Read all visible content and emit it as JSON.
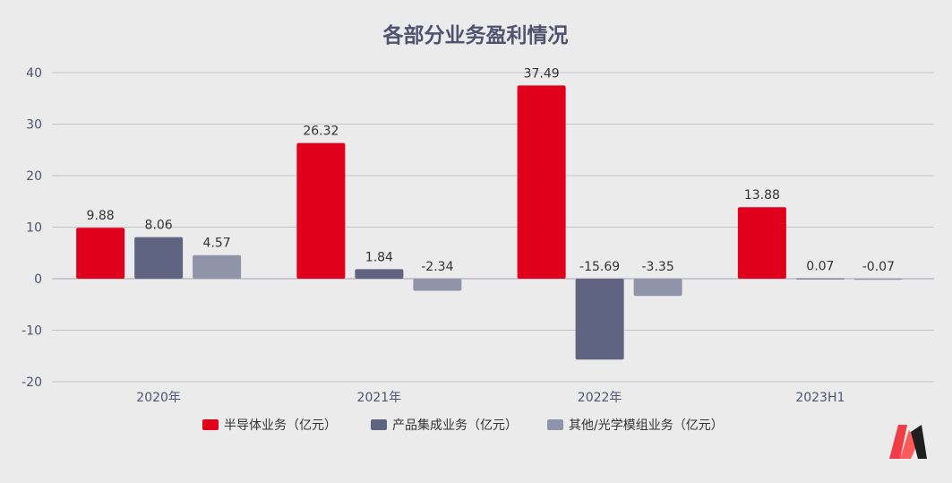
{
  "chart_data": {
    "type": "bar",
    "title": "各部分业务盈利情况",
    "categories": [
      "2020年",
      "2021年",
      "2022年",
      "2023H1"
    ],
    "series": [
      {
        "name": "半导体业务（亿元）",
        "color": "#e0001b",
        "values": [
          9.88,
          26.32,
          37.49,
          13.88
        ]
      },
      {
        "name": "产品集成业务（亿元）",
        "color": "#5f6480",
        "values": [
          8.06,
          1.84,
          -15.69,
          0.07
        ]
      },
      {
        "name": "其他/光学模组业务（亿元）",
        "color": "#9094a8",
        "values": [
          4.57,
          -2.34,
          -3.35,
          -0.07
        ]
      }
    ],
    "ylim": [
      -20,
      40
    ],
    "yticks": [
      40,
      30,
      20,
      10,
      0,
      -10,
      -20
    ],
    "grid": true,
    "legend": "bottom",
    "xlabel": "",
    "ylabel": ""
  },
  "logo": {
    "name": "brand-logo"
  }
}
